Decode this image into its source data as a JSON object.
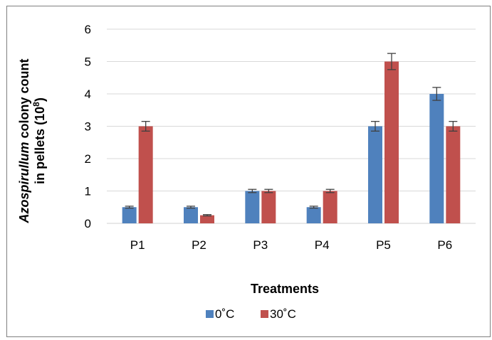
{
  "chart_data": {
    "type": "bar",
    "categories": [
      "P1",
      "P2",
      "P3",
      "P4",
      "P5",
      "P6"
    ],
    "series": [
      {
        "name": "0˚C",
        "color": "#4f81bd",
        "values": [
          0.5,
          0.5,
          1.0,
          0.5,
          3.0,
          4.0
        ],
        "errors": [
          0.03,
          0.03,
          0.05,
          0.03,
          0.15,
          0.2
        ]
      },
      {
        "name": "30˚C",
        "color": "#c0504d",
        "values": [
          3.0,
          0.25,
          1.0,
          1.0,
          5.0,
          3.0
        ],
        "errors": [
          0.15,
          0.02,
          0.05,
          0.05,
          0.25,
          0.15
        ]
      }
    ],
    "yticks": [
      "0",
      "1",
      "2",
      "3",
      "4",
      "5",
      "6"
    ],
    "ylim": [
      0,
      6
    ],
    "xlabel": "Treatments",
    "ylabel_parts": {
      "italic": "Azospirullum",
      "line1_rest": " colony count",
      "line2": "in pellets (10",
      "line2_sup": "8",
      "line2_end": ")"
    },
    "grid": true,
    "legend_position": "bottom-center"
  }
}
